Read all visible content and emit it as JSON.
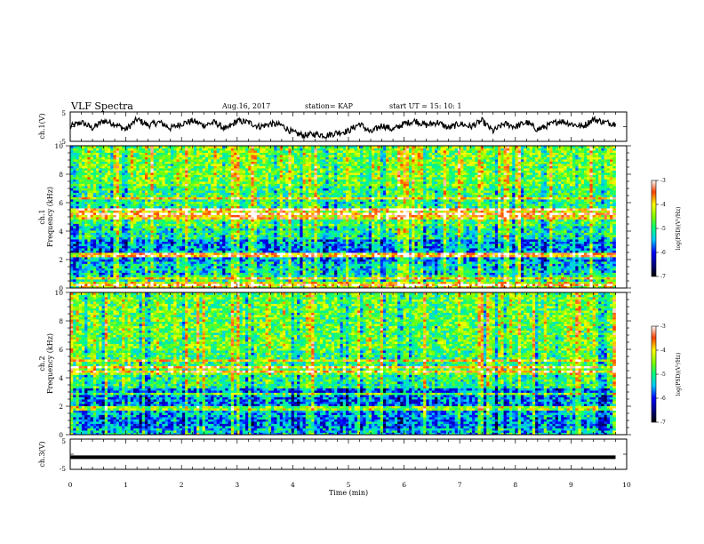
{
  "header": {
    "title": "VLF Spectra",
    "date": "Aug.16, 2017",
    "station": "station= KAP",
    "start": "start  UT  =   15: 10: 1"
  },
  "chart_data": [
    {
      "type": "line",
      "panel": "ch1-waveform",
      "ylabel": "ch.1(V)",
      "ylim": [
        -5,
        5
      ],
      "yticks": [
        "5",
        "-5"
      ],
      "x": [
        0,
        0.2,
        0.4,
        0.6,
        0.8,
        1,
        1.2,
        1.4,
        1.6,
        1.8,
        2,
        2.2,
        2.4,
        2.6,
        2.8,
        3,
        3.2,
        3.4,
        3.6,
        3.8,
        4,
        4.2,
        4.4,
        4.6,
        4.8,
        5,
        5.2,
        5.4,
        5.6,
        5.8,
        6,
        6.2,
        6.4,
        6.6,
        6.8,
        7,
        7.2,
        7.4,
        7.6,
        7.8,
        8,
        8.2,
        8.4,
        8.6,
        8.8,
        9,
        9.2,
        9.4,
        9.6,
        9.8
      ],
      "y": [
        0,
        1.5,
        -0.5,
        2,
        1,
        -1,
        2.5,
        0.5,
        1.5,
        -0.5,
        1,
        2,
        0.5,
        1.5,
        -1,
        2,
        1.5,
        0,
        1,
        0.5,
        -2,
        -3,
        -2.5,
        -3,
        -2,
        -1.5,
        1,
        -2,
        0.5,
        -1,
        1,
        2,
        0.5,
        1.5,
        -0.5,
        1,
        0,
        2,
        -1.5,
        1,
        0,
        1.5,
        -1,
        0.5,
        2,
        1,
        0,
        2.5,
        1.5,
        1
      ]
    },
    {
      "type": "heatmap",
      "panel": "ch1-spectrogram",
      "ylabel": "ch.1",
      "ylabel2": "Frequency (kHz)",
      "ylim": [
        0,
        10
      ],
      "yticks": [
        "0",
        "2",
        "4",
        "6",
        "8",
        "10"
      ],
      "colorbar": {
        "range": [
          -7,
          -3
        ],
        "ticks": [
          "-3",
          "-4",
          "-5",
          "-6",
          "-7"
        ],
        "label": "log(PSD)(V²/Hz)"
      },
      "band_log_psd": [
        {
          "f": [
            0,
            0.4
          ],
          "v": -4.2
        },
        {
          "f": [
            0.4,
            1.0
          ],
          "v": -5.0
        },
        {
          "f": [
            1.0,
            1.8
          ],
          "v": -5.3
        },
        {
          "f": [
            1.8,
            2.2
          ],
          "v": -5.6
        },
        {
          "f": [
            2.2,
            2.5
          ],
          "v": -4.6
        },
        {
          "f": [
            2.5,
            3.4
          ],
          "v": -5.6
        },
        {
          "f": [
            3.4,
            4.3
          ],
          "v": -5.1
        },
        {
          "f": [
            4.3,
            5.2
          ],
          "v": -4.8
        },
        {
          "f": [
            5.2,
            5.6
          ],
          "v": -4.2
        },
        {
          "f": [
            5.6,
            6.2
          ],
          "v": -5.0
        },
        {
          "f": [
            6.2,
            7.2
          ],
          "v": -4.9
        },
        {
          "f": [
            7.2,
            10
          ],
          "v": -4.6
        }
      ],
      "line_freqs": [
        0.3,
        0.7,
        2.2,
        2.4,
        5.0,
        5.3,
        5.5,
        6.3
      ]
    },
    {
      "type": "heatmap",
      "panel": "ch2-spectrogram",
      "ylabel": "ch.2",
      "ylabel2": "Frequency (kHz)",
      "ylim": [
        0,
        10
      ],
      "yticks": [
        "0",
        "2",
        "4",
        "6",
        "8",
        "10"
      ],
      "colorbar": {
        "range": [
          -7,
          -3
        ],
        "ticks": [
          "-3",
          "-4",
          "-5",
          "-6",
          "-7"
        ],
        "label": "log(PSD)(V²/Hz)"
      },
      "band_log_psd": [
        {
          "f": [
            0,
            0.5
          ],
          "v": -5.4
        },
        {
          "f": [
            0.5,
            1.2
          ],
          "v": -5.7
        },
        {
          "f": [
            1.2,
            2.0
          ],
          "v": -5.5
        },
        {
          "f": [
            2.0,
            3.3
          ],
          "v": -5.7
        },
        {
          "f": [
            3.3,
            4.2
          ],
          "v": -5.0
        },
        {
          "f": [
            4.2,
            4.8
          ],
          "v": -4.6
        },
        {
          "f": [
            4.8,
            6.0
          ],
          "v": -4.9
        },
        {
          "f": [
            6.0,
            10
          ],
          "v": -4.7
        }
      ],
      "line_freqs": [
        1.8,
        2.0,
        2.9,
        4.5,
        4.7,
        5.2
      ]
    },
    {
      "type": "line",
      "panel": "ch3-waveform",
      "ylabel": "ch.3(V)",
      "ylim": [
        -5,
        5
      ],
      "yticks": [
        "5",
        "-5"
      ],
      "x": [
        0,
        9.8
      ],
      "y": [
        -1,
        -1
      ]
    }
  ],
  "xaxis": {
    "label": "Time (min)",
    "ticks": [
      "0",
      "1",
      "2",
      "3",
      "4",
      "5",
      "6",
      "7",
      "8",
      "9",
      "10"
    ],
    "xlim": [
      0,
      10
    ]
  }
}
